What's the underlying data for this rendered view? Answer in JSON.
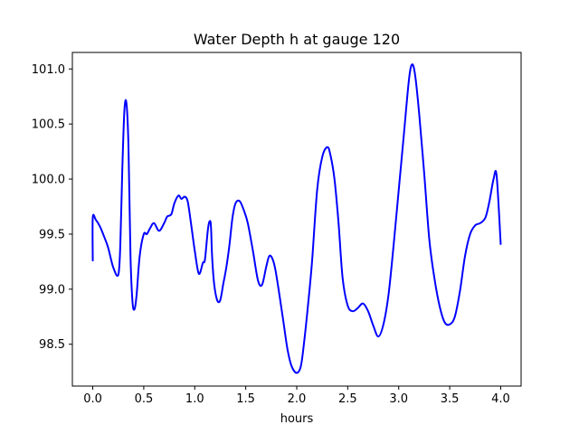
{
  "chart_data": {
    "type": "line",
    "title": "Water Depth h at gauge 120",
    "xlabel": "hours",
    "ylabel": "",
    "xlim": [
      -0.2,
      4.2
    ],
    "ylim": [
      98.12,
      101.15
    ],
    "xticks": [
      0.0,
      0.5,
      1.0,
      1.5,
      2.0,
      2.5,
      3.0,
      3.5,
      4.0
    ],
    "xtick_labels": [
      "0.0",
      "0.5",
      "1.0",
      "1.5",
      "2.0",
      "2.5",
      "3.0",
      "3.5",
      "4.0"
    ],
    "yticks": [
      98.5,
      99.0,
      99.5,
      100.0,
      100.5,
      101.0
    ],
    "ytick_labels": [
      "98.5",
      "99.0",
      "99.5",
      "100.0",
      "100.5",
      "101.0"
    ],
    "grid": false,
    "line_color": "#0000ff",
    "series": [
      {
        "x": [
          0.0,
          0.0,
          0.03,
          0.07,
          0.11,
          0.15,
          0.2,
          0.25,
          0.27,
          0.29,
          0.31,
          0.33,
          0.35,
          0.37,
          0.39,
          0.41,
          0.43,
          0.46,
          0.5,
          0.53,
          0.56,
          0.6,
          0.65,
          0.7,
          0.73,
          0.77,
          0.8,
          0.84,
          0.87,
          0.9,
          0.93,
          0.96,
          1.0,
          1.04,
          1.08,
          1.1,
          1.13,
          1.15,
          1.16,
          1.17,
          1.19,
          1.22,
          1.25,
          1.28,
          1.31,
          1.34,
          1.37,
          1.4,
          1.44,
          1.48,
          1.52,
          1.57,
          1.62,
          1.66,
          1.7,
          1.73,
          1.76,
          1.79,
          1.83,
          1.87,
          1.91,
          1.95,
          2.0,
          2.04,
          2.07,
          2.11,
          2.15,
          2.2,
          2.25,
          2.3,
          2.33,
          2.37,
          2.41,
          2.45,
          2.5,
          2.55,
          2.6,
          2.65,
          2.7,
          2.75,
          2.8,
          2.85,
          2.9,
          2.95,
          3.0,
          3.05,
          3.1,
          3.13,
          3.16,
          3.2,
          3.25,
          3.3,
          3.35,
          3.4,
          3.45,
          3.5,
          3.55,
          3.6,
          3.65,
          3.7,
          3.75,
          3.8,
          3.85,
          3.89,
          3.93,
          3.96,
          4.0
        ],
        "y": [
          99.26,
          99.65,
          99.63,
          99.57,
          99.48,
          99.38,
          99.2,
          99.13,
          99.4,
          100.1,
          100.62,
          100.69,
          100.3,
          99.3,
          98.88,
          98.82,
          98.95,
          99.3,
          99.5,
          99.5,
          99.55,
          99.6,
          99.53,
          99.6,
          99.66,
          99.68,
          99.78,
          99.85,
          99.82,
          99.84,
          99.8,
          99.62,
          99.35,
          99.14,
          99.24,
          99.27,
          99.55,
          99.62,
          99.55,
          99.3,
          99.05,
          98.9,
          98.9,
          99.05,
          99.2,
          99.4,
          99.65,
          99.78,
          99.8,
          99.72,
          99.6,
          99.35,
          99.08,
          99.04,
          99.2,
          99.3,
          99.28,
          99.18,
          98.95,
          98.7,
          98.45,
          98.3,
          98.24,
          98.3,
          98.5,
          98.85,
          99.25,
          99.9,
          100.2,
          100.29,
          100.22,
          100.0,
          99.6,
          99.1,
          98.85,
          98.8,
          98.83,
          98.87,
          98.8,
          98.67,
          98.57,
          98.68,
          98.95,
          99.4,
          99.9,
          100.4,
          100.9,
          101.04,
          100.95,
          100.6,
          100.05,
          99.45,
          99.1,
          98.85,
          98.7,
          98.68,
          98.75,
          98.98,
          99.3,
          99.5,
          99.58,
          99.6,
          99.65,
          99.8,
          100.0,
          100.03,
          99.41
        ]
      }
    ]
  }
}
